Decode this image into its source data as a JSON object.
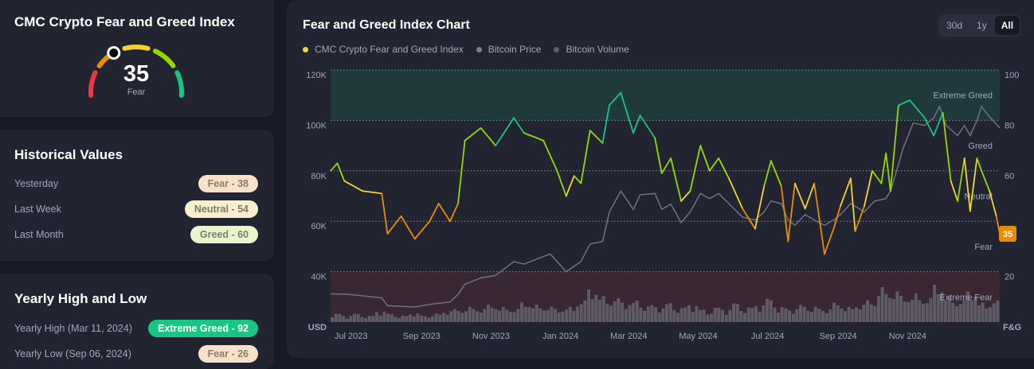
{
  "gauge": {
    "title": "CMC Crypto Fear and Greed Index",
    "value": 35,
    "label": "Fear"
  },
  "historical": {
    "title": "Historical Values",
    "items": [
      {
        "label": "Yesterday",
        "value": "Fear - 38",
        "bg": "#f7e1cb",
        "fg": "#8c7a6a"
      },
      {
        "label": "Last Week",
        "value": "Neutral - 54",
        "bg": "#f8efcf",
        "fg": "#7f7a63"
      },
      {
        "label": "Last Month",
        "value": "Greed - 60",
        "bg": "#e9f5cd",
        "fg": "#77806a"
      }
    ]
  },
  "yearly": {
    "title": "Yearly High and Low",
    "items": [
      {
        "label": "Yearly High (Mar 11, 2024)",
        "value": "Extreme Greed - 92",
        "bg": "#16c784",
        "fg": "#ffffff"
      },
      {
        "label": "Yearly Low (Sep 06, 2024)",
        "value": "Fear - 26",
        "bg": "#f7e1cb",
        "fg": "#8c7a6a"
      }
    ]
  },
  "chart": {
    "title": "Fear and Greed Index Chart",
    "tabs": [
      "30d",
      "1y",
      "All"
    ],
    "active_tab": "All",
    "legend": [
      {
        "name": "CMC Crypto Fear and Greed Index",
        "color": "#f3d42f"
      },
      {
        "name": "Bitcoin Price",
        "color": "#7c7f8c"
      },
      {
        "name": "Bitcoin Volume",
        "color": "#5a5d6a"
      }
    ]
  },
  "chart_data": {
    "type": "line",
    "x_range": [
      "2023-06-27",
      "2025-02-04"
    ],
    "x_ticks": [
      "Jul 2023",
      "Sep 2023",
      "Nov 2023",
      "Jan 2024",
      "Mar 2024",
      "May 2024",
      "Jul 2024",
      "Sep 2024",
      "Nov 2024"
    ],
    "y_left": {
      "label": "USD",
      "range": [
        20000,
        120000
      ],
      "ticks": [
        "120K",
        "100K",
        "80K",
        "60K",
        "40K"
      ]
    },
    "y_right": {
      "label": "F&G",
      "range": [
        0,
        100
      ],
      "ticks": [
        "100",
        "80",
        "60",
        "20"
      ]
    },
    "zones": [
      "Extreme Greed",
      "Greed",
      "Neutral",
      "Fear",
      "Extreme Fear"
    ],
    "current_value": "35",
    "grid": true,
    "series": [
      {
        "name": "CMC Crypto Fear and Greed Index",
        "axis": "right",
        "points": [
          [
            "2023-06-27",
            60
          ],
          [
            "2023-07-03",
            63
          ],
          [
            "2023-07-09",
            56
          ],
          [
            "2023-07-25",
            52
          ],
          [
            "2023-08-11",
            51
          ],
          [
            "2023-08-16",
            35
          ],
          [
            "2023-08-28",
            42
          ],
          [
            "2023-09-09",
            33
          ],
          [
            "2023-09-22",
            40
          ],
          [
            "2023-09-30",
            47
          ],
          [
            "2023-10-10",
            40
          ],
          [
            "2023-10-17",
            47
          ],
          [
            "2023-10-23",
            72
          ],
          [
            "2023-11-06",
            77
          ],
          [
            "2023-11-19",
            70
          ],
          [
            "2023-12-05",
            81
          ],
          [
            "2023-12-14",
            75
          ],
          [
            "2023-12-31",
            72
          ],
          [
            "2024-01-12",
            60
          ],
          [
            "2024-01-20",
            50
          ],
          [
            "2024-01-27",
            58
          ],
          [
            "2024-02-02",
            55
          ],
          [
            "2024-02-10",
            76
          ],
          [
            "2024-02-21",
            71
          ],
          [
            "2024-02-27",
            86
          ],
          [
            "2024-03-08",
            91
          ],
          [
            "2024-03-19",
            75
          ],
          [
            "2024-03-25",
            82
          ],
          [
            "2024-04-07",
            73
          ],
          [
            "2024-04-13",
            59
          ],
          [
            "2024-04-21",
            65
          ],
          [
            "2024-04-30",
            48
          ],
          [
            "2024-05-08",
            52
          ],
          [
            "2024-05-17",
            70
          ],
          [
            "2024-05-25",
            60
          ],
          [
            "2024-06-02",
            65
          ],
          [
            "2024-06-11",
            57
          ],
          [
            "2024-06-23",
            45
          ],
          [
            "2024-07-04",
            37
          ],
          [
            "2024-07-12",
            54
          ],
          [
            "2024-07-18",
            64
          ],
          [
            "2024-07-27",
            54
          ],
          [
            "2024-08-02",
            32
          ],
          [
            "2024-08-08",
            55
          ],
          [
            "2024-08-17",
            45
          ],
          [
            "2024-08-25",
            55
          ],
          [
            "2024-09-03",
            27
          ],
          [
            "2024-09-11",
            37
          ],
          [
            "2024-09-17",
            46
          ],
          [
            "2024-09-26",
            57
          ],
          [
            "2024-09-30",
            36
          ],
          [
            "2024-10-08",
            46
          ],
          [
            "2024-10-15",
            60
          ],
          [
            "2024-10-23",
            55
          ],
          [
            "2024-10-27",
            67
          ],
          [
            "2024-10-31",
            52
          ],
          [
            "2024-11-07",
            86
          ],
          [
            "2024-11-17",
            88
          ],
          [
            "2024-11-30",
            81
          ],
          [
            "2024-12-08",
            74
          ],
          [
            "2024-12-16",
            83
          ],
          [
            "2024-12-23",
            56
          ],
          [
            "2024-12-29",
            48
          ],
          [
            "2025-01-04",
            65
          ],
          [
            "2025-01-09",
            44
          ],
          [
            "2025-01-15",
            65
          ],
          [
            "2025-01-19",
            60
          ],
          [
            "2025-01-26",
            52
          ],
          [
            "2025-02-01",
            42
          ],
          [
            "2025-02-04",
            35
          ]
        ]
      },
      {
        "name": "Bitcoin Price",
        "axis": "left",
        "points": [
          [
            "2023-06-27",
            31200
          ],
          [
            "2023-07-13",
            31000
          ],
          [
            "2023-08-11",
            29600
          ],
          [
            "2023-08-16",
            26500
          ],
          [
            "2023-09-09",
            26000
          ],
          [
            "2023-09-22",
            27000
          ],
          [
            "2023-10-10",
            28000
          ],
          [
            "2023-10-17",
            31000
          ],
          [
            "2023-10-23",
            35000
          ],
          [
            "2023-11-06",
            37500
          ],
          [
            "2023-11-19",
            38500
          ],
          [
            "2023-12-05",
            44000
          ],
          [
            "2023-12-14",
            43000
          ],
          [
            "2023-12-31",
            46000
          ],
          [
            "2024-01-06",
            47000
          ],
          [
            "2024-01-20",
            40000
          ],
          [
            "2024-02-02",
            44000
          ],
          [
            "2024-02-10",
            51000
          ],
          [
            "2024-02-21",
            52000
          ],
          [
            "2024-02-27",
            63700
          ],
          [
            "2024-03-08",
            72000
          ],
          [
            "2024-03-19",
            64700
          ],
          [
            "2024-03-25",
            70500
          ],
          [
            "2024-04-07",
            71000
          ],
          [
            "2024-04-13",
            64700
          ],
          [
            "2024-04-21",
            66800
          ],
          [
            "2024-04-30",
            59500
          ],
          [
            "2024-05-08",
            63700
          ],
          [
            "2024-05-17",
            71000
          ],
          [
            "2024-05-25",
            69000
          ],
          [
            "2024-06-02",
            71000
          ],
          [
            "2024-06-11",
            67000
          ],
          [
            "2024-06-23",
            61600
          ],
          [
            "2024-07-04",
            60500
          ],
          [
            "2024-07-12",
            63700
          ],
          [
            "2024-07-18",
            68000
          ],
          [
            "2024-07-27",
            67000
          ],
          [
            "2024-08-02",
            60500
          ],
          [
            "2024-08-08",
            58400
          ],
          [
            "2024-08-17",
            62600
          ],
          [
            "2024-08-25",
            60500
          ],
          [
            "2024-09-03",
            58400
          ],
          [
            "2024-09-11",
            60500
          ],
          [
            "2024-09-17",
            62600
          ],
          [
            "2024-09-26",
            67000
          ],
          [
            "2024-10-08",
            63700
          ],
          [
            "2024-10-17",
            68000
          ],
          [
            "2024-10-27",
            69000
          ],
          [
            "2024-10-31",
            72000
          ],
          [
            "2024-11-07",
            82500
          ],
          [
            "2024-11-11",
            88800
          ],
          [
            "2024-11-20",
            99000
          ],
          [
            "2024-11-30",
            98000
          ],
          [
            "2024-12-08",
            101000
          ],
          [
            "2024-12-13",
            105500
          ],
          [
            "2024-12-19",
            98000
          ],
          [
            "2024-12-29",
            94000
          ],
          [
            "2025-01-04",
            98000
          ],
          [
            "2025-01-09",
            94000
          ],
          [
            "2025-01-15",
            100000
          ],
          [
            "2025-01-19",
            105500
          ],
          [
            "2025-01-25",
            102000
          ],
          [
            "2025-02-04",
            97000
          ]
        ]
      }
    ],
    "volume_relative": [
      0.2,
      0.15,
      0.2,
      0.15,
      0.25,
      0.2,
      0.15,
      0.2,
      0.15,
      0.2,
      0.25,
      0.3,
      0.35,
      0.3,
      0.4,
      0.35,
      0.3,
      0.45,
      0.4,
      0.35,
      0.3,
      0.35,
      0.5,
      0.75,
      0.6,
      0.55,
      0.45,
      0.5,
      0.4,
      0.35,
      0.45,
      0.35,
      0.4,
      0.3,
      0.35,
      0.3,
      0.45,
      0.35,
      0.4,
      0.55,
      0.35,
      0.3,
      0.4,
      0.35,
      0.3,
      0.45,
      0.35,
      0.4,
      0.5,
      0.8,
      0.7,
      0.6,
      0.65,
      0.55,
      0.85,
      0.6,
      0.5,
      0.7,
      0.45,
      0.5
    ]
  }
}
